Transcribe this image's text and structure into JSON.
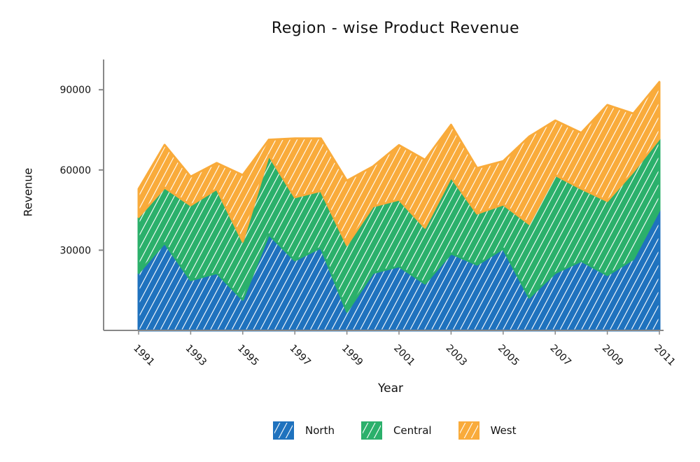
{
  "chart_data": {
    "type": "area",
    "stacked": true,
    "title": "Region - wise Product Revenue",
    "xlabel": "Year",
    "ylabel": "Revenue",
    "x": [
      1991,
      1992,
      1993,
      1994,
      1995,
      1996,
      1997,
      1998,
      1999,
      2000,
      2001,
      2002,
      2003,
      2004,
      2005,
      2006,
      2007,
      2008,
      2009,
      2010,
      2011
    ],
    "x_tick_labels": [
      "1991",
      "1993",
      "1995",
      "1997",
      "1999",
      "2001",
      "2003",
      "2005",
      "2007",
      "2009",
      "2011"
    ],
    "y_tick_labels": [
      "30000",
      "60000",
      "90000"
    ],
    "y_ticks": [
      30000,
      60000,
      90000
    ],
    "ylim": [
      0,
      100000
    ],
    "grid": false,
    "legend_position": "bottom",
    "series": [
      {
        "name": "North",
        "color": "#1f72be",
        "values": [
          21500,
          32700,
          18800,
          21500,
          11500,
          35900,
          26200,
          31000,
          7000,
          21500,
          24000,
          17500,
          28800,
          24600,
          30600,
          12300,
          21500,
          26000,
          20700,
          26700,
          45000
        ]
      },
      {
        "name": "Central",
        "color": "#2bb06b",
        "values": [
          20900,
          20700,
          28000,
          31400,
          21700,
          29600,
          23600,
          21200,
          24900,
          24900,
          24900,
          20900,
          28500,
          19100,
          16500,
          27500,
          36600,
          27000,
          27700,
          32700,
          26700
        ]
      },
      {
        "name": "West",
        "color": "#f9ab3b",
        "values": [
          10500,
          16000,
          10700,
          9700,
          24900,
          5800,
          22000,
          19600,
          24100,
          14900,
          20400,
          25400,
          19600,
          17000,
          16200,
          32700,
          20400,
          20900,
          35900,
          21700,
          21200
        ]
      }
    ]
  }
}
